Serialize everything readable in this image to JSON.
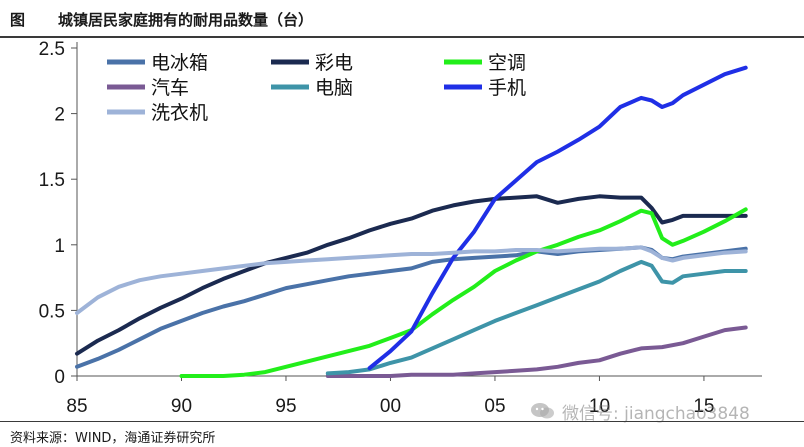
{
  "header": {
    "label": "图",
    "title": "城镇居民家庭拥有的耐用品数量（台）"
  },
  "footer": {
    "source": "资料来源：WIND，海通证券研究所"
  },
  "watermark": {
    "icon": "wechat-icon",
    "text": "微信号: jiangchao3848"
  },
  "chart_data": {
    "type": "line",
    "title": "城镇居民家庭拥有的耐用品数量（台）",
    "xlabel": "",
    "ylabel": "",
    "xlim": [
      1985,
      2017.3
    ],
    "ylim": [
      0,
      2.5
    ],
    "xticks": [
      1985,
      1990,
      1995,
      2000,
      2005,
      2010,
      2015
    ],
    "xtick_labels": [
      "85",
      "90",
      "95",
      "00",
      "05",
      "10",
      "15"
    ],
    "yticks": [
      0,
      0.5,
      1,
      1.5,
      2,
      2.5
    ],
    "ytick_labels": [
      "0",
      "0.5",
      "1",
      "1.5",
      "2",
      "2.5"
    ],
    "grid": false,
    "legend_position": "top",
    "series": [
      {
        "name": "电冰箱",
        "color": "#4a72a8",
        "x": [
          1985,
          1986,
          1987,
          1988,
          1989,
          1990,
          1991,
          1992,
          1993,
          1994,
          1995,
          1996,
          1997,
          1998,
          1999,
          2000,
          2001,
          2002,
          2003,
          2004,
          2005,
          2006,
          2007,
          2008,
          2009,
          2010,
          2011,
          2012,
          2012.5,
          2013,
          2013.5,
          2014,
          2015,
          2016,
          2017
        ],
        "y": [
          0.07,
          0.13,
          0.2,
          0.28,
          0.36,
          0.42,
          0.48,
          0.53,
          0.57,
          0.62,
          0.67,
          0.7,
          0.73,
          0.76,
          0.78,
          0.8,
          0.82,
          0.87,
          0.89,
          0.9,
          0.91,
          0.92,
          0.95,
          0.93,
          0.95,
          0.96,
          0.97,
          0.98,
          0.96,
          0.9,
          0.89,
          0.91,
          0.93,
          0.95,
          0.97
        ]
      },
      {
        "name": "彩电",
        "color": "#1b2a50",
        "x": [
          1985,
          1986,
          1987,
          1988,
          1989,
          1990,
          1991,
          1992,
          1993,
          1994,
          1995,
          1996,
          1997,
          1998,
          1999,
          2000,
          2001,
          2002,
          2003,
          2004,
          2005,
          2006,
          2007,
          2008,
          2009,
          2010,
          2011,
          2012,
          2012.5,
          2013,
          2013.5,
          2014,
          2015,
          2016,
          2017
        ],
        "y": [
          0.17,
          0.27,
          0.35,
          0.44,
          0.52,
          0.59,
          0.67,
          0.74,
          0.8,
          0.86,
          0.9,
          0.94,
          1.0,
          1.05,
          1.11,
          1.16,
          1.2,
          1.26,
          1.3,
          1.33,
          1.35,
          1.36,
          1.37,
          1.32,
          1.35,
          1.37,
          1.36,
          1.36,
          1.28,
          1.17,
          1.19,
          1.22,
          1.22,
          1.22,
          1.22
        ]
      },
      {
        "name": "空调",
        "color": "#22ee1a",
        "x": [
          1990,
          1991,
          1992,
          1993,
          1994,
          1995,
          1996,
          1997,
          1998,
          1999,
          2000,
          2001,
          2002,
          2003,
          2004,
          2005,
          2006,
          2007,
          2008,
          2009,
          2010,
          2011,
          2012,
          2012.5,
          2013,
          2013.5,
          2014,
          2015,
          2016,
          2017
        ],
        "y": [
          0.0,
          0.0,
          0.0,
          0.01,
          0.03,
          0.07,
          0.11,
          0.15,
          0.19,
          0.23,
          0.29,
          0.35,
          0.47,
          0.58,
          0.68,
          0.8,
          0.88,
          0.95,
          1.0,
          1.06,
          1.11,
          1.18,
          1.26,
          1.24,
          1.05,
          1.0,
          1.03,
          1.1,
          1.18,
          1.27
        ]
      },
      {
        "name": "汽车",
        "color": "#7a5a94",
        "x": [
          1997,
          1998,
          1999,
          2000,
          2001,
          2002,
          2003,
          2004,
          2005,
          2006,
          2007,
          2008,
          2009,
          2010,
          2011,
          2012,
          2013,
          2014,
          2015,
          2016,
          2017
        ],
        "y": [
          0.0,
          0.0,
          0.0,
          0.0,
          0.01,
          0.01,
          0.01,
          0.02,
          0.03,
          0.04,
          0.05,
          0.07,
          0.1,
          0.12,
          0.17,
          0.21,
          0.22,
          0.25,
          0.3,
          0.35,
          0.37
        ]
      },
      {
        "name": "电脑",
        "color": "#3e94a8",
        "x": [
          1997,
          1998,
          1999,
          2000,
          2001,
          2002,
          2003,
          2004,
          2005,
          2006,
          2007,
          2008,
          2009,
          2010,
          2011,
          2012,
          2012.5,
          2013,
          2013.5,
          2014,
          2015,
          2016,
          2017
        ],
        "y": [
          0.02,
          0.03,
          0.05,
          0.1,
          0.14,
          0.21,
          0.28,
          0.35,
          0.42,
          0.48,
          0.54,
          0.6,
          0.66,
          0.72,
          0.8,
          0.87,
          0.84,
          0.72,
          0.71,
          0.76,
          0.78,
          0.8,
          0.8
        ]
      },
      {
        "name": "手机",
        "color": "#1f2fe6",
        "x": [
          1999,
          2000,
          2001,
          2002,
          2003,
          2004,
          2005,
          2006,
          2007,
          2008,
          2009,
          2010,
          2011,
          2012,
          2012.5,
          2013,
          2013.5,
          2014,
          2015,
          2016,
          2017
        ],
        "y": [
          0.06,
          0.19,
          0.34,
          0.63,
          0.9,
          1.1,
          1.35,
          1.49,
          1.63,
          1.71,
          1.8,
          1.9,
          2.05,
          2.12,
          2.1,
          2.05,
          2.08,
          2.14,
          2.22,
          2.3,
          2.35
        ]
      },
      {
        "name": "洗衣机",
        "color": "#9eb3d8",
        "x": [
          1985,
          1986,
          1987,
          1988,
          1989,
          1990,
          1991,
          1992,
          1993,
          1994,
          1995,
          1996,
          1997,
          1998,
          1999,
          2000,
          2001,
          2002,
          2003,
          2004,
          2005,
          2006,
          2007,
          2008,
          2009,
          2010,
          2011,
          2012,
          2012.5,
          2013,
          2013.5,
          2014,
          2015,
          2016,
          2017
        ],
        "y": [
          0.48,
          0.6,
          0.68,
          0.73,
          0.76,
          0.78,
          0.8,
          0.82,
          0.84,
          0.86,
          0.87,
          0.88,
          0.89,
          0.9,
          0.91,
          0.92,
          0.93,
          0.93,
          0.94,
          0.95,
          0.95,
          0.96,
          0.96,
          0.95,
          0.96,
          0.97,
          0.97,
          0.98,
          0.95,
          0.9,
          0.88,
          0.9,
          0.92,
          0.94,
          0.95
        ]
      }
    ]
  }
}
